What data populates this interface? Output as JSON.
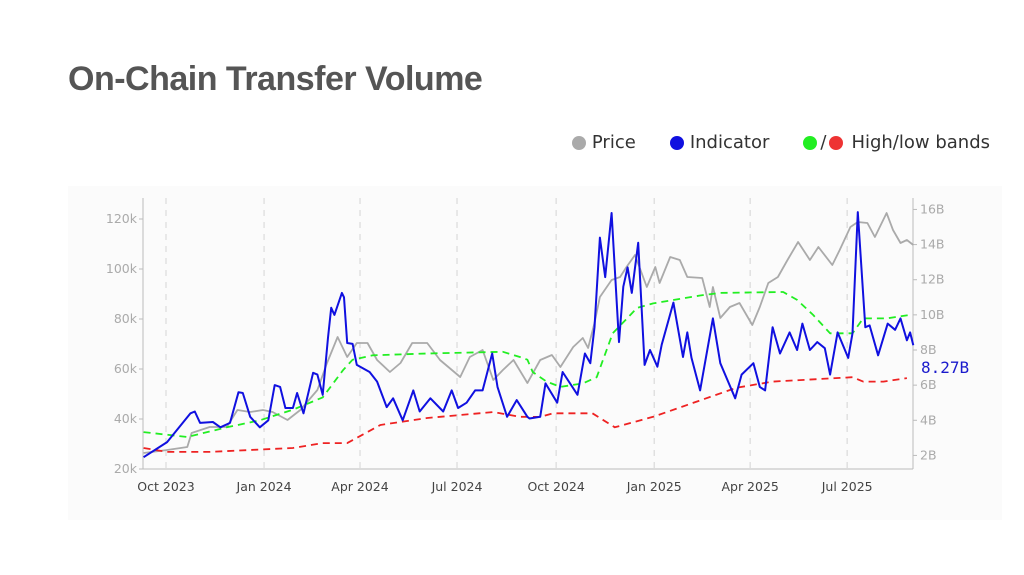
{
  "title": "On-Chain Transfer Volume",
  "legend": {
    "price": {
      "label": "Price",
      "color": "#aaaaaa"
    },
    "indicator": {
      "label": "Indicator",
      "color": "#1010e0"
    },
    "bands": {
      "label": "High/low bands",
      "slash": "/",
      "high_color": "#22ee22",
      "low_color": "#ee3333"
    }
  },
  "chart_data": {
    "type": "line",
    "title": "On-Chain Transfer Volume",
    "x_unit": "days since 2023-10-01",
    "x_range": [
      -21,
      701
    ],
    "x_ticks": [
      {
        "day": 0,
        "label": "Oct 2023"
      },
      {
        "day": 92,
        "label": "Jan 2024"
      },
      {
        "day": 182,
        "label": "Apr 2024"
      },
      {
        "day": 273,
        "label": "Jul 2024"
      },
      {
        "day": 366,
        "label": "Oct 2024"
      },
      {
        "day": 458,
        "label": "Jan 2025"
      },
      {
        "day": 548,
        "label": "Apr 2025"
      },
      {
        "day": 639,
        "label": "Jul 2025"
      }
    ],
    "y_left": {
      "unit": "USD thousands",
      "range": [
        20,
        120
      ],
      "ticks": [
        {
          "v": 20,
          "label": "20k"
        },
        {
          "v": 40,
          "label": "40k"
        },
        {
          "v": 60,
          "label": "60k"
        },
        {
          "v": 80,
          "label": "80k"
        },
        {
          "v": 100,
          "label": "100k"
        },
        {
          "v": 120,
          "label": "120k"
        }
      ]
    },
    "y_right": {
      "unit": "billions",
      "range": [
        2,
        16
      ],
      "ticks": [
        {
          "v": 2,
          "label": "2B"
        },
        {
          "v": 4,
          "label": "4B"
        },
        {
          "v": 6,
          "label": "6B"
        },
        {
          "v": 8,
          "label": "8B"
        },
        {
          "v": 10,
          "label": "10B"
        },
        {
          "v": 12,
          "label": "12B"
        },
        {
          "v": 14,
          "label": "14B"
        },
        {
          "v": 16,
          "label": "16B"
        }
      ]
    },
    "last_value_label": "8.27B",
    "series": [
      {
        "name": "Price",
        "axis": "left",
        "color": "#aaaaaa",
        "dash": false,
        "points": [
          [
            -21,
            26.4
          ],
          [
            1,
            27.6
          ],
          [
            20,
            28.8
          ],
          [
            24,
            34.4
          ],
          [
            41,
            36.8
          ],
          [
            57,
            36.8
          ],
          [
            67,
            43.6
          ],
          [
            79,
            42.8
          ],
          [
            91,
            43.6
          ],
          [
            100,
            42.8
          ],
          [
            114,
            39.6
          ],
          [
            126,
            43.6
          ],
          [
            142,
            51.6
          ],
          [
            151,
            62.4
          ],
          [
            161,
            72.8
          ],
          [
            170,
            64.8
          ],
          [
            179,
            70.4
          ],
          [
            189,
            70.4
          ],
          [
            198,
            63.6
          ],
          [
            210,
            58.8
          ],
          [
            220,
            62.4
          ],
          [
            231,
            70.4
          ],
          [
            245,
            70.4
          ],
          [
            257,
            63.6
          ],
          [
            276,
            56.8
          ],
          [
            285,
            64.8
          ],
          [
            297,
            67.6
          ],
          [
            307,
            55.6
          ],
          [
            316,
            59.6
          ],
          [
            326,
            63.6
          ],
          [
            339,
            54.4
          ],
          [
            351,
            63.6
          ],
          [
            362,
            65.6
          ],
          [
            370,
            60.8
          ],
          [
            382,
            68.8
          ],
          [
            391,
            72.4
          ],
          [
            396,
            68.4
          ],
          [
            402,
            78.4
          ],
          [
            407,
            88.8
          ],
          [
            418,
            95.6
          ],
          [
            426,
            96.8
          ],
          [
            432,
            100.8
          ],
          [
            440,
            105.6
          ],
          [
            451,
            92.8
          ],
          [
            459,
            100.8
          ],
          [
            463,
            94.4
          ],
          [
            473,
            104.8
          ],
          [
            482,
            103.6
          ],
          [
            489,
            96.8
          ],
          [
            503,
            96.4
          ],
          [
            510,
            84.8
          ],
          [
            513,
            92.8
          ],
          [
            520,
            80.4
          ],
          [
            529,
            84.8
          ],
          [
            538,
            86.4
          ],
          [
            550,
            77.6
          ],
          [
            557,
            84.8
          ],
          [
            565,
            94.4
          ],
          [
            574,
            96.8
          ],
          [
            583,
            103.6
          ],
          [
            593,
            110.8
          ],
          [
            604,
            103.6
          ],
          [
            612,
            108.8
          ],
          [
            625,
            101.6
          ],
          [
            632,
            107.6
          ],
          [
            642,
            116.8
          ],
          [
            649,
            118.8
          ],
          [
            658,
            118.4
          ],
          [
            665,
            112.8
          ],
          [
            676,
            122.4
          ],
          [
            682,
            115.6
          ],
          [
            689,
            110.4
          ],
          [
            695,
            111.6
          ],
          [
            701,
            109.6
          ]
        ]
      },
      {
        "name": "High band",
        "axis": "right",
        "color": "#22ee22",
        "dash": true,
        "points": [
          [
            -21,
            3.33
          ],
          [
            20,
            3.05
          ],
          [
            57,
            3.6
          ],
          [
            88,
            4.0
          ],
          [
            119,
            4.6
          ],
          [
            147,
            5.3
          ],
          [
            166,
            6.85
          ],
          [
            175,
            7.45
          ],
          [
            194,
            7.7
          ],
          [
            245,
            7.8
          ],
          [
            316,
            7.9
          ],
          [
            332,
            7.6
          ],
          [
            339,
            7.45
          ],
          [
            344,
            6.75
          ],
          [
            357,
            6.2
          ],
          [
            370,
            5.9
          ],
          [
            391,
            6.1
          ],
          [
            404,
            6.45
          ],
          [
            419,
            8.95
          ],
          [
            442,
            10.4
          ],
          [
            457,
            10.65
          ],
          [
            501,
            11.1
          ],
          [
            520,
            11.25
          ],
          [
            579,
            11.3
          ],
          [
            592,
            10.85
          ],
          [
            607,
            10.0
          ],
          [
            623,
            8.95
          ],
          [
            644,
            8.95
          ],
          [
            654,
            9.8
          ],
          [
            676,
            9.8
          ],
          [
            698,
            10.0
          ]
        ]
      },
      {
        "name": "Low band",
        "axis": "right",
        "color": "#ee2222",
        "dash": true,
        "points": [
          [
            -21,
            2.42
          ],
          [
            1,
            2.2
          ],
          [
            41,
            2.2
          ],
          [
            119,
            2.42
          ],
          [
            147,
            2.7
          ],
          [
            170,
            2.7
          ],
          [
            201,
            3.73
          ],
          [
            245,
            4.13
          ],
          [
            307,
            4.47
          ],
          [
            332,
            4.2
          ],
          [
            351,
            4.19
          ],
          [
            363,
            4.4
          ],
          [
            400,
            4.4
          ],
          [
            421,
            3.6
          ],
          [
            457,
            4.2
          ],
          [
            535,
            5.85
          ],
          [
            569,
            6.2
          ],
          [
            644,
            6.45
          ],
          [
            654,
            6.2
          ],
          [
            673,
            6.2
          ],
          [
            695,
            6.4
          ]
        ]
      },
      {
        "name": "Indicator",
        "axis": "right",
        "color": "#1010e0",
        "dash": false,
        "points": [
          [
            -21,
            1.9
          ],
          [
            1,
            2.76
          ],
          [
            23,
            4.4
          ],
          [
            27,
            4.5
          ],
          [
            32,
            3.85
          ],
          [
            44,
            3.9
          ],
          [
            51,
            3.6
          ],
          [
            60,
            3.85
          ],
          [
            68,
            5.6
          ],
          [
            72,
            5.55
          ],
          [
            79,
            4.2
          ],
          [
            88,
            3.6
          ],
          [
            96,
            4.0
          ],
          [
            102,
            6.0
          ],
          [
            107,
            5.9
          ],
          [
            112,
            4.7
          ],
          [
            119,
            4.7
          ],
          [
            123,
            5.55
          ],
          [
            129,
            4.4
          ],
          [
            138,
            6.7
          ],
          [
            142,
            6.6
          ],
          [
            147,
            5.45
          ],
          [
            152,
            8.7
          ],
          [
            155,
            10.4
          ],
          [
            158,
            10.0
          ],
          [
            165,
            11.25
          ],
          [
            167,
            11.0
          ],
          [
            170,
            8.4
          ],
          [
            175,
            8.35
          ],
          [
            179,
            7.15
          ],
          [
            191,
            6.75
          ],
          [
            198,
            6.2
          ],
          [
            207,
            4.75
          ],
          [
            213,
            5.25
          ],
          [
            222,
            4.0
          ],
          [
            232,
            5.7
          ],
          [
            238,
            4.5
          ],
          [
            248,
            5.25
          ],
          [
            260,
            4.5
          ],
          [
            268,
            5.7
          ],
          [
            274,
            4.7
          ],
          [
            282,
            5.0
          ],
          [
            290,
            5.7
          ],
          [
            297,
            5.7
          ],
          [
            306,
            7.8
          ],
          [
            311,
            5.9
          ],
          [
            320,
            4.2
          ],
          [
            329,
            5.15
          ],
          [
            339,
            4.2
          ],
          [
            341,
            4.1
          ],
          [
            351,
            4.2
          ],
          [
            356,
            6.1
          ],
          [
            367,
            5.0
          ],
          [
            372,
            6.75
          ],
          [
            386,
            5.45
          ],
          [
            393,
            7.8
          ],
          [
            398,
            7.25
          ],
          [
            402,
            9.3
          ],
          [
            407,
            14.4
          ],
          [
            412,
            12.15
          ],
          [
            418,
            15.8
          ],
          [
            425,
            8.45
          ],
          [
            429,
            11.6
          ],
          [
            433,
            12.7
          ],
          [
            437,
            11.25
          ],
          [
            443,
            14.1
          ],
          [
            449,
            7.15
          ],
          [
            454,
            8.0
          ],
          [
            461,
            7.05
          ],
          [
            465,
            8.3
          ],
          [
            476,
            10.7
          ],
          [
            485,
            7.6
          ],
          [
            489,
            9.0
          ],
          [
            493,
            7.55
          ],
          [
            501,
            5.7
          ],
          [
            513,
            9.8
          ],
          [
            520,
            7.25
          ],
          [
            534,
            5.25
          ],
          [
            540,
            6.6
          ],
          [
            551,
            7.25
          ],
          [
            557,
            5.9
          ],
          [
            562,
            5.7
          ],
          [
            569,
            9.3
          ],
          [
            576,
            7.8
          ],
          [
            585,
            9.0
          ],
          [
            592,
            8.0
          ],
          [
            597,
            9.5
          ],
          [
            604,
            8.0
          ],
          [
            611,
            8.45
          ],
          [
            618,
            8.1
          ],
          [
            623,
            6.6
          ],
          [
            630,
            9.0
          ],
          [
            640,
            7.55
          ],
          [
            644,
            8.95
          ],
          [
            649,
            15.85
          ],
          [
            656,
            9.3
          ],
          [
            660,
            9.4
          ],
          [
            668,
            7.7
          ],
          [
            677,
            9.5
          ],
          [
            684,
            9.15
          ],
          [
            689,
            9.8
          ],
          [
            695,
            8.55
          ],
          [
            698,
            9.0
          ],
          [
            701,
            8.27
          ]
        ]
      }
    ]
  }
}
